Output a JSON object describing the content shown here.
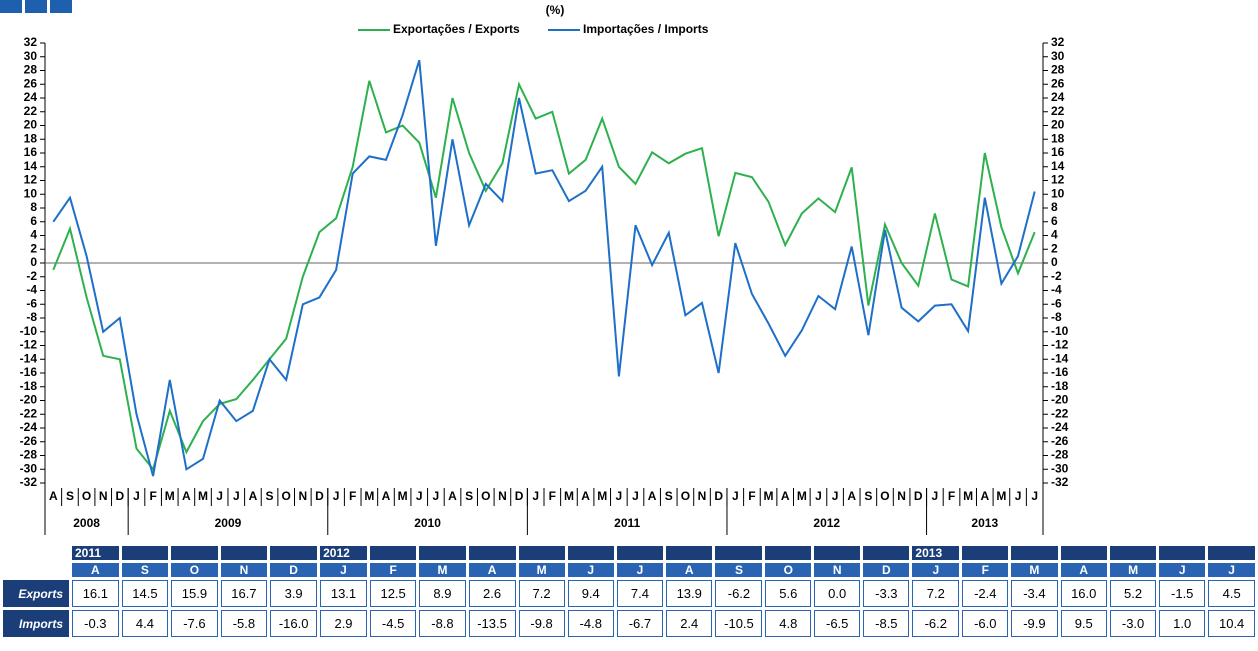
{
  "chart_data": {
    "type": "line",
    "title": "(%)",
    "categories": [
      "A",
      "S",
      "O",
      "N",
      "D",
      "J",
      "F",
      "M",
      "A",
      "M",
      "J",
      "J",
      "A",
      "S",
      "O",
      "N",
      "D",
      "J",
      "F",
      "M",
      "A",
      "M",
      "J",
      "J",
      "A",
      "S",
      "O",
      "N",
      "D",
      "J",
      "F",
      "M",
      "A",
      "M",
      "J",
      "J",
      "A",
      "S",
      "O",
      "N",
      "D",
      "J",
      "F",
      "M",
      "A",
      "M",
      "J",
      "J",
      "A",
      "S",
      "O",
      "N",
      "D",
      "J",
      "F",
      "M",
      "A",
      "M",
      "J",
      "J"
    ],
    "years": [
      "2008",
      "2009",
      "2010",
      "2011",
      "2012",
      "2013"
    ],
    "series": [
      {
        "name": "Exportações / Exports",
        "color": "#2db14e",
        "values": [
          -1,
          5,
          -5,
          -13.5,
          -14,
          -27,
          -30,
          -21.5,
          -27.5,
          -23,
          -20.5,
          -19.8,
          -17,
          -14,
          -11,
          -2,
          4.5,
          6.5,
          14,
          26.5,
          19,
          20,
          17.5,
          9.5,
          24,
          16,
          10.5,
          14.5,
          26,
          21,
          22,
          13,
          15,
          21,
          14,
          11.5,
          16.1,
          14.5,
          15.9,
          16.7,
          3.9,
          13.1,
          12.5,
          8.9,
          2.6,
          7.2,
          9.4,
          7.4,
          13.9,
          -6.2,
          5.6,
          0.0,
          -3.3,
          7.2,
          -2.4,
          -3.4,
          16.0,
          5.2,
          -1.5,
          4.5
        ]
      },
      {
        "name": "Importações / Imports",
        "color": "#1e6fc8",
        "values": [
          6,
          9.5,
          1,
          -10,
          -8,
          -22,
          -31,
          -17,
          -30,
          -28.5,
          -20,
          -23,
          -21.5,
          -14,
          -17,
          -6,
          -5,
          -1,
          13,
          15.5,
          15,
          21.5,
          29.5,
          2.5,
          18,
          5.5,
          11.5,
          9,
          24,
          13,
          13.5,
          9,
          10.5,
          14,
          -16.5,
          5.5,
          -0.3,
          4.4,
          -7.6,
          -5.8,
          -16.0,
          2.9,
          -4.5,
          -8.8,
          -13.5,
          -9.8,
          -4.8,
          -6.7,
          2.4,
          -10.5,
          4.8,
          -6.5,
          -8.5,
          -6.2,
          -6.0,
          -9.9,
          9.5,
          -3.0,
          1.0,
          10.4
        ]
      }
    ],
    "ylim": [
      -32,
      32
    ],
    "yticks": [
      -32,
      -30,
      -28,
      -26,
      -24,
      -22,
      -20,
      -18,
      -16,
      -14,
      -12,
      -10,
      -8,
      -6,
      -4,
      -2,
      0,
      2,
      4,
      6,
      8,
      10,
      12,
      14,
      16,
      18,
      20,
      22,
      24,
      26,
      28,
      30,
      32
    ],
    "zero_line": true
  },
  "table": {
    "years": [
      "2011",
      null,
      null,
      null,
      null,
      "2012",
      null,
      null,
      null,
      null,
      null,
      null,
      null,
      null,
      null,
      null,
      null,
      "2013",
      null,
      null,
      null,
      null,
      null,
      null
    ],
    "months": [
      "A",
      "S",
      "O",
      "N",
      "D",
      "J",
      "F",
      "M",
      "A",
      "M",
      "J",
      "J",
      "A",
      "S",
      "O",
      "N",
      "D",
      "J",
      "F",
      "M",
      "A",
      "M",
      "J",
      "J"
    ],
    "rows": [
      {
        "label": "Exports",
        "cells": [
          "16.1",
          "14.5",
          "15.9",
          "16.7",
          "3.9",
          "13.1",
          "12.5",
          "8.9",
          "2.6",
          "7.2",
          "9.4",
          "7.4",
          "13.9",
          "-6.2",
          "5.6",
          "0.0",
          "-3.3",
          "7.2",
          "-2.4",
          "-3.4",
          "16.0",
          "5.2",
          "-1.5",
          "4.5"
        ]
      },
      {
        "label": "Imports",
        "cells": [
          "-0.3",
          "4.4",
          "-7.6",
          "-5.8",
          "-16.0",
          "2.9",
          "-4.5",
          "-8.8",
          "-13.5",
          "-9.8",
          "-4.8",
          "-6.7",
          "2.4",
          "-10.5",
          "4.8",
          "-6.5",
          "-8.5",
          "-6.2",
          "-6.0",
          "-9.9",
          "9.5",
          "-3.0",
          "1.0",
          "10.4"
        ]
      }
    ]
  }
}
